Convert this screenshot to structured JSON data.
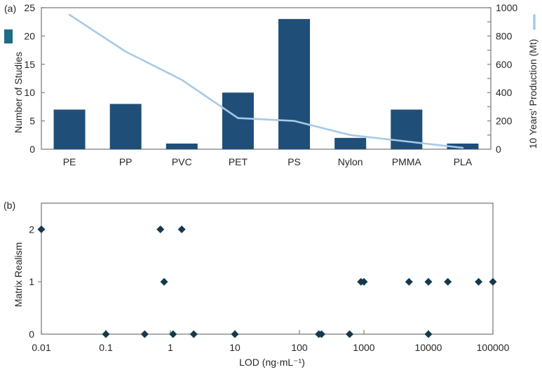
{
  "colors": {
    "bar": "#1f4e79",
    "line": "#a6c9e8",
    "bar_legend_swatch": "#1e6b84",
    "marker": "#16384e",
    "axis": "#7f7f7f",
    "text": "#262626"
  },
  "chart_data": [
    {
      "type": "bar",
      "panel_label": "(a)",
      "categories": [
        "PE",
        "PP",
        "PVC",
        "PET",
        "PS",
        "Nylon",
        "PMMA",
        "PLA"
      ],
      "series": [
        {
          "name": "Number of Studies",
          "type": "bar",
          "axis": "left",
          "color": "#1f4e79",
          "values": [
            7,
            8,
            1,
            10,
            23,
            2,
            7,
            1
          ]
        },
        {
          "name": "10 Years' Production (Mt)",
          "type": "line",
          "axis": "right",
          "color": "#a6c9e8",
          "values": [
            950,
            690,
            490,
            220,
            200,
            100,
            55,
            10
          ]
        }
      ],
      "left_axis": {
        "label": "Number of Studies",
        "min": 0,
        "max": 25,
        "ticks": [
          0,
          5,
          10,
          15,
          20,
          25
        ]
      },
      "right_axis": {
        "label": "10 Years' Production (Mt)",
        "min": 0,
        "max": 1000,
        "ticks": [
          0,
          200,
          400,
          600,
          800,
          1000
        ],
        "minor_step": 100
      },
      "legend": {
        "bar_marker": "square",
        "line_marker": "vertical-line",
        "position": "outside-left-and-right"
      },
      "grid": false
    },
    {
      "type": "scatter",
      "panel_label": "(b)",
      "x_axis": {
        "label": "LOD (ng·mL⁻¹)",
        "scale": "log",
        "min": 0.01,
        "max": 100000,
        "ticks": [
          0.01,
          0.1,
          1,
          10,
          100,
          1000,
          10000,
          100000
        ],
        "tick_labels": [
          "0.01",
          "0.1",
          "1",
          "10",
          "100",
          "1000",
          "10000",
          "100000"
        ]
      },
      "y_axis": {
        "label": "Matrix Realism",
        "min": 0,
        "max": 2.5,
        "ticks": [
          0,
          1,
          2
        ]
      },
      "marker": {
        "shape": "diamond",
        "color": "#16384e",
        "size": 11
      },
      "points": [
        {
          "x": 0.01,
          "y": 2
        },
        {
          "x": 0.7,
          "y": 2
        },
        {
          "x": 1.5,
          "y": 2
        },
        {
          "x": 0.8,
          "y": 1
        },
        {
          "x": 900,
          "y": 1
        },
        {
          "x": 1000,
          "y": 1
        },
        {
          "x": 5000,
          "y": 1
        },
        {
          "x": 10000,
          "y": 1
        },
        {
          "x": 20000,
          "y": 1
        },
        {
          "x": 60000,
          "y": 1
        },
        {
          "x": 100000,
          "y": 1
        },
        {
          "x": 0.1,
          "y": 0
        },
        {
          "x": 0.4,
          "y": 0
        },
        {
          "x": 1.1,
          "y": 0
        },
        {
          "x": 2.3,
          "y": 0
        },
        {
          "x": 10,
          "y": 0
        },
        {
          "x": 200,
          "y": 0
        },
        {
          "x": 220,
          "y": 0
        },
        {
          "x": 600,
          "y": 0
        },
        {
          "x": 10000,
          "y": 0
        }
      ],
      "grid": false
    }
  ]
}
